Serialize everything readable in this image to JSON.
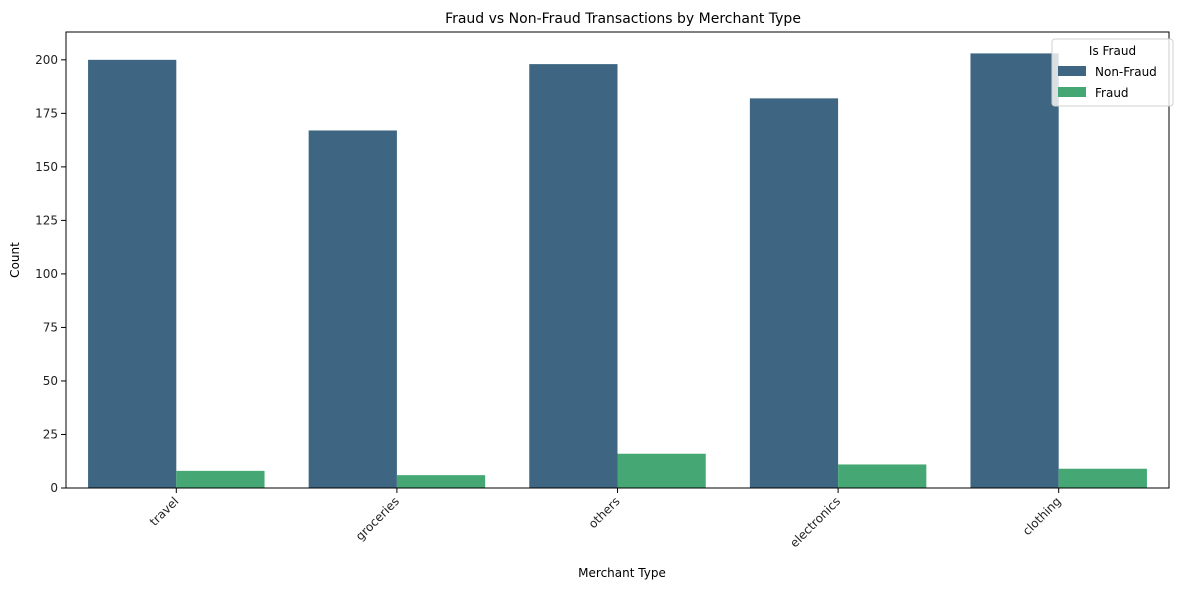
{
  "chart_data": {
    "type": "bar",
    "title": "Fraud vs Non-Fraud Transactions by Merchant Type",
    "xlabel": "Merchant Type",
    "ylabel": "Count",
    "categories": [
      "travel",
      "groceries",
      "others",
      "electronics",
      "clothing"
    ],
    "series": [
      {
        "name": "Non-Fraud",
        "color": "#3e6682",
        "values": [
          200,
          167,
          198,
          182,
          203
        ]
      },
      {
        "name": "Fraud",
        "color": "#45a874",
        "values": [
          8,
          6,
          16,
          11,
          9
        ]
      }
    ],
    "ylim": [
      0,
      213
    ],
    "yticks": [
      0,
      25,
      50,
      75,
      100,
      125,
      150,
      175,
      200
    ],
    "grid": false,
    "legend": {
      "title": "Is Fraud",
      "position": "top-right"
    }
  }
}
